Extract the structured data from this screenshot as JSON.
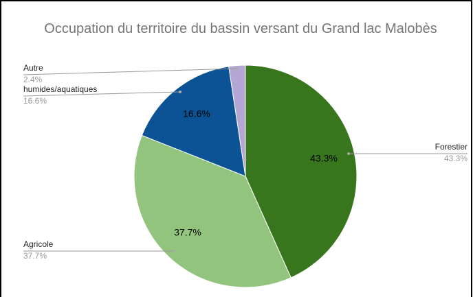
{
  "chart_data": {
    "type": "pie",
    "title": "Occupation du territoire du bassin versant du Grand lac Malobès",
    "categories": [
      "Forestier",
      "Agricole",
      "humides/aquatiques",
      "Autre"
    ],
    "values": [
      43.3,
      37.7,
      16.6,
      2.4
    ],
    "value_labels": [
      "43.3%",
      "37.7%",
      "16.6%",
      "2.4%"
    ],
    "colors": [
      "#38761d",
      "#93c47d",
      "#0b5394",
      "#b4a7d6"
    ]
  }
}
